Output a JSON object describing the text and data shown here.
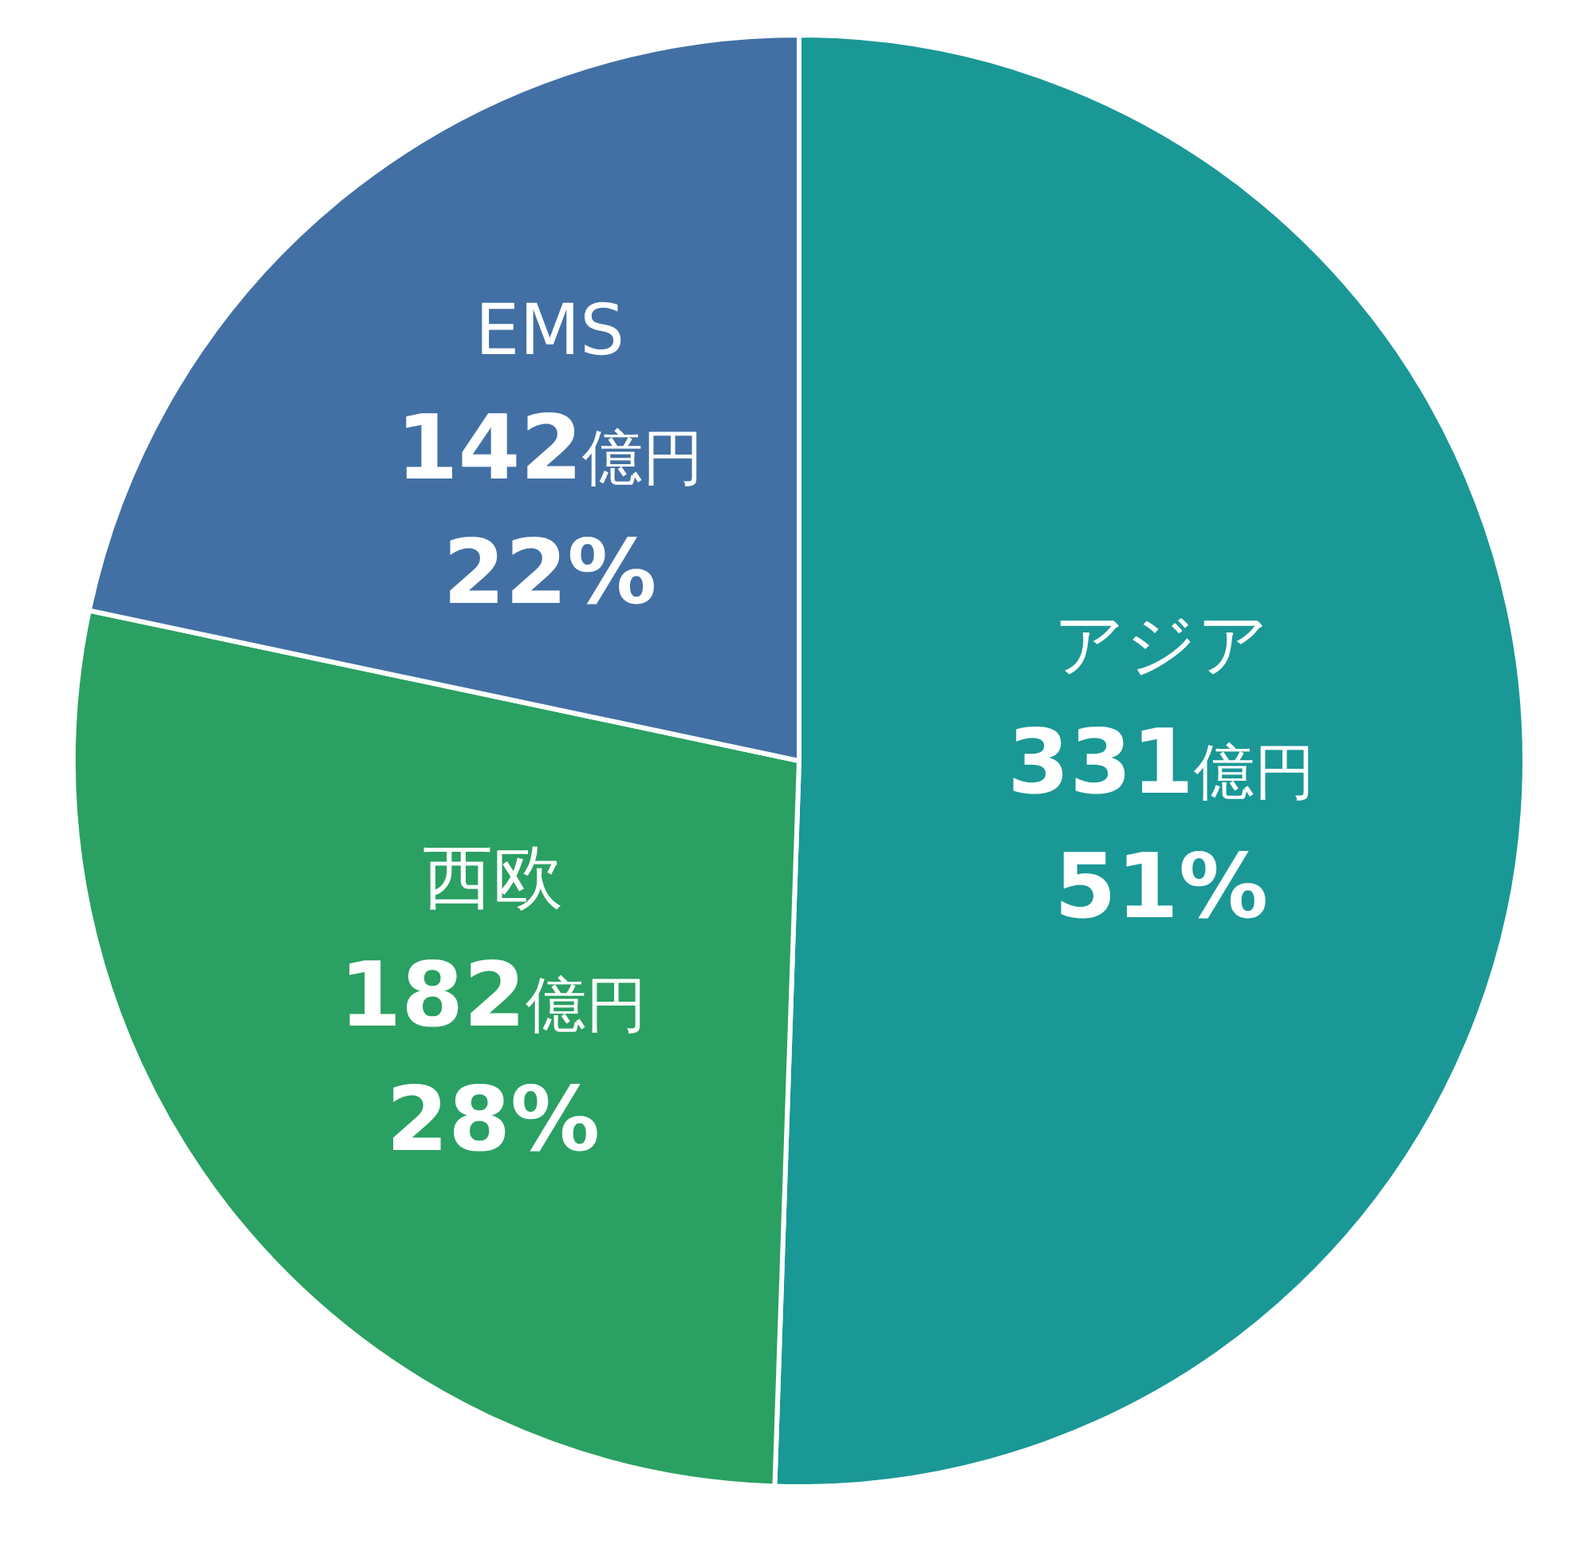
{
  "chart_data": {
    "type": "pie",
    "categories": [
      "アジア",
      "西欧",
      "EMS"
    ],
    "values": [
      331,
      182,
      142
    ],
    "colors": [
      "#1a9896",
      "#2aa062",
      "#4270a4"
    ],
    "value_labels": [
      "331億円\n51%",
      "182億円\n28%",
      "142億円\n22%"
    ]
  }
}
